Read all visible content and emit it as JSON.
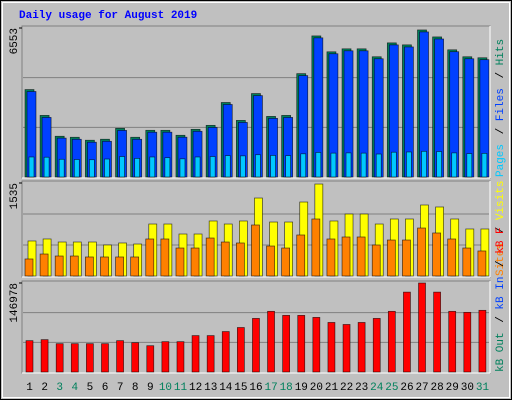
{
  "chart_data": [
    {
      "type": "bar",
      "title": "Daily usage for August 2019",
      "ylim": [
        0,
        6553
      ],
      "yticks": [
        6553
      ],
      "legend_separator": "/",
      "series": [
        {
          "name": "Hits",
          "color": "#00805c",
          "values": [
            3845,
            2709,
            1792,
            1748,
            1617,
            1661,
            2141,
            1748,
            2054,
            2054,
            1835,
            2097,
            2272,
            3277,
            2490,
            3670,
            2665,
            2709,
            4545,
            6205,
            5506,
            5637,
            5637,
            5288,
            5899,
            5812,
            6467,
            6161,
            5594,
            5288,
            5244
          ]
        },
        {
          "name": "Files",
          "color": "#0040ff",
          "values": [
            3760,
            2620,
            1710,
            1660,
            1530,
            1570,
            2050,
            1660,
            1970,
            1970,
            1750,
            2010,
            2180,
            3190,
            2400,
            3580,
            2580,
            2620,
            4460,
            6120,
            5420,
            5550,
            5550,
            5200,
            5810,
            5720,
            6380,
            6070,
            5510,
            5200,
            5160
          ]
        },
        {
          "name": "Pages",
          "color": "#00c8ff",
          "values": [
            880,
            870,
            780,
            770,
            760,
            790,
            900,
            820,
            880,
            850,
            800,
            880,
            900,
            940,
            930,
            980,
            950,
            940,
            1020,
            1080,
            1050,
            1060,
            1050,
            1010,
            1090,
            1100,
            1130,
            1120,
            1060,
            1030,
            1040
          ]
        }
      ]
    },
    {
      "type": "bar",
      "ylim": [
        0,
        1535
      ],
      "yticks": [
        1535
      ],
      "legend_separator": "/",
      "series": [
        {
          "name": "Visits",
          "color": "#ffff00",
          "values": [
            578,
            611,
            561,
            561,
            561,
            512,
            545,
            528,
            858,
            858,
            693,
            693,
            908,
            858,
            908,
            1287,
            891,
            891,
            1221,
            1518,
            908,
            1023,
            1023,
            858,
            941,
            941,
            1172,
            1139,
            941,
            776,
            776
          ]
        },
        {
          "name": "Sites",
          "color": "#ff8000",
          "values": [
            281,
            363,
            330,
            330,
            314,
            314,
            314,
            314,
            611,
            611,
            462,
            462,
            627,
            561,
            545,
            842,
            495,
            462,
            677,
            941,
            611,
            644,
            644,
            512,
            594,
            594,
            792,
            710,
            611,
            462,
            413
          ]
        }
      ]
    },
    {
      "type": "bar",
      "ylim": [
        0,
        146978
      ],
      "yticks": [
        146978
      ],
      "legend_separator": "/",
      "categories": [
        "1",
        "2",
        "3",
        "4",
        "5",
        "6",
        "7",
        "8",
        "9",
        "10",
        "11",
        "12",
        "13",
        "14",
        "15",
        "16",
        "17",
        "18",
        "19",
        "20",
        "21",
        "22",
        "23",
        "24",
        "25",
        "26",
        "27",
        "28",
        "29",
        "30",
        "31"
      ],
      "category_colors": [
        "#000000",
        "#000000",
        "#00805c",
        "#00805c",
        "#000000",
        "#000000",
        "#000000",
        "#000000",
        "#000000",
        "#00805c",
        "#00805c",
        "#000000",
        "#000000",
        "#000000",
        "#000000",
        "#000000",
        "#00805c",
        "#00805c",
        "#000000",
        "#000000",
        "#000000",
        "#000000",
        "#000000",
        "#00805c",
        "#00805c",
        "#000000",
        "#000000",
        "#000000",
        "#000000",
        "#000000",
        "#00805c"
      ],
      "series": [
        {
          "name": "kB F",
          "color": "#ff0000",
          "values": [
            51770,
            53440,
            46760,
            46760,
            46760,
            46760,
            51770,
            48430,
            43420,
            50100,
            50100,
            60120,
            60120,
            66800,
            73480,
            88510,
            100200,
            93520,
            93520,
            90180,
            81830,
            78490,
            81830,
            88510,
            100200,
            131930,
            146960,
            131930,
            100200,
            98530,
            101870
          ]
        },
        {
          "name": "kB In",
          "color": "#0040ff",
          "values": [
            0,
            0,
            0,
            0,
            0,
            0,
            0,
            0,
            0,
            0,
            0,
            0,
            0,
            0,
            0,
            0,
            0,
            0,
            0,
            0,
            0,
            0,
            0,
            0,
            0,
            0,
            0,
            0,
            0,
            0,
            0
          ]
        },
        {
          "name": "kB Out",
          "color": "#00805c",
          "values": [
            0,
            0,
            0,
            0,
            0,
            0,
            0,
            0,
            0,
            0,
            0,
            0,
            0,
            0,
            0,
            0,
            0,
            0,
            0,
            0,
            0,
            0,
            0,
            0,
            0,
            0,
            0,
            0,
            0,
            0,
            0
          ]
        }
      ]
    }
  ]
}
